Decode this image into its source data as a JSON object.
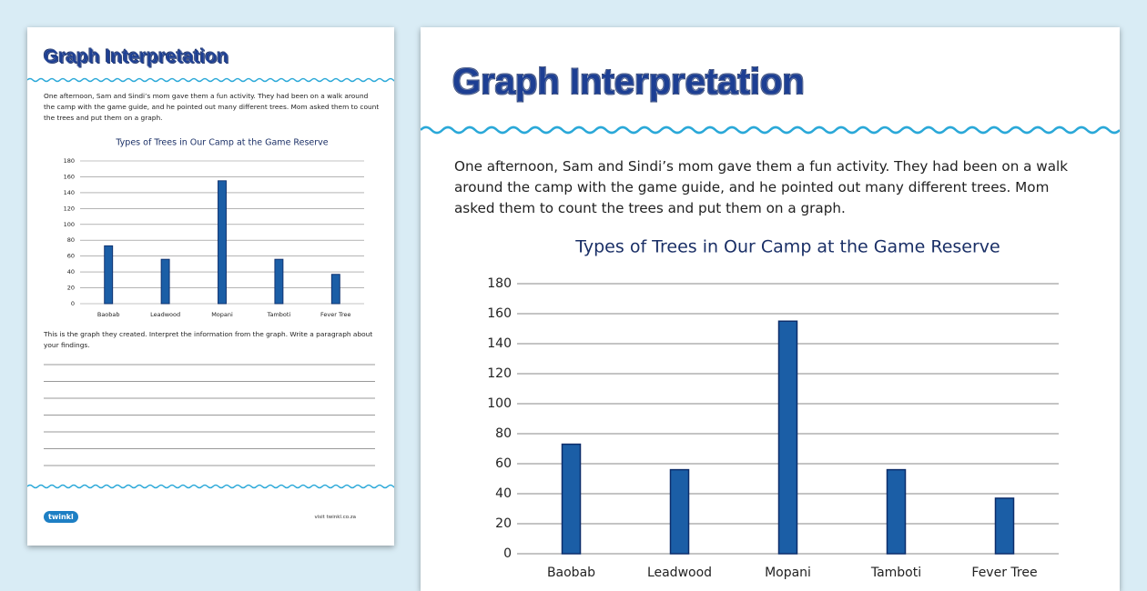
{
  "header": {
    "title": "Graph Interpretation"
  },
  "intro": "One afternoon, Sam and Sindi’s mom gave them a fun activity. They had been on a walk around the camp with the game guide, and he pointed out many different trees. Mom asked them to count the trees and put them on a graph.",
  "chart_data": {
    "type": "bar",
    "title": "Types of Trees in Our Camp at the Game Reserve",
    "categories": [
      "Baobab",
      "Leadwood",
      "Mopani",
      "Tamboti",
      "Fever Tree"
    ],
    "values": [
      73,
      56,
      155,
      56,
      37
    ],
    "color": "#1b5ea6",
    "ylim": [
      0,
      180
    ],
    "yticks": [
      0,
      20,
      40,
      60,
      80,
      100,
      120,
      140,
      160,
      180
    ],
    "grid": true
  },
  "instructions": "This is the graph they created. Interpret the information from the graph. Write a paragraph about your findings.",
  "footer": {
    "logo": "twinkl",
    "url": "visit twinkl.co.za"
  }
}
